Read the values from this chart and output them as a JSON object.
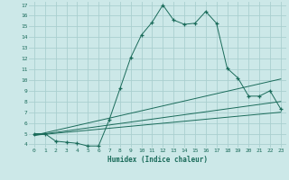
{
  "bg_color": "#cce8e8",
  "grid_color": "#aacfcf",
  "line_color": "#1a6b5a",
  "xlabel": "Humidex (Indice chaleur)",
  "xlim": [
    -0.5,
    23.5
  ],
  "ylim": [
    3.7,
    17.3
  ],
  "yticks": [
    4,
    5,
    6,
    7,
    8,
    9,
    10,
    11,
    12,
    13,
    14,
    15,
    16,
    17
  ],
  "xticks": [
    0,
    1,
    2,
    3,
    4,
    5,
    6,
    7,
    8,
    9,
    10,
    11,
    12,
    13,
    14,
    15,
    16,
    17,
    18,
    19,
    20,
    21,
    22,
    23
  ],
  "main_x": [
    0,
    1,
    2,
    3,
    4,
    5,
    6,
    7,
    8,
    9,
    10,
    11,
    12,
    13,
    14,
    15,
    16,
    17,
    18,
    19,
    20,
    21,
    22,
    23
  ],
  "main_y": [
    5.0,
    5.0,
    4.3,
    4.2,
    4.1,
    3.85,
    3.85,
    6.3,
    9.2,
    12.1,
    14.2,
    15.4,
    17.0,
    15.6,
    15.2,
    15.3,
    16.4,
    15.3,
    11.1,
    10.2,
    8.5,
    8.5,
    9.0,
    7.3
  ],
  "line2_x": [
    0,
    23
  ],
  "line2_y": [
    4.85,
    10.1
  ],
  "line3_x": [
    0,
    23
  ],
  "line3_y": [
    4.85,
    8.0
  ],
  "line4_x": [
    0,
    23
  ],
  "line4_y": [
    4.85,
    7.0
  ]
}
